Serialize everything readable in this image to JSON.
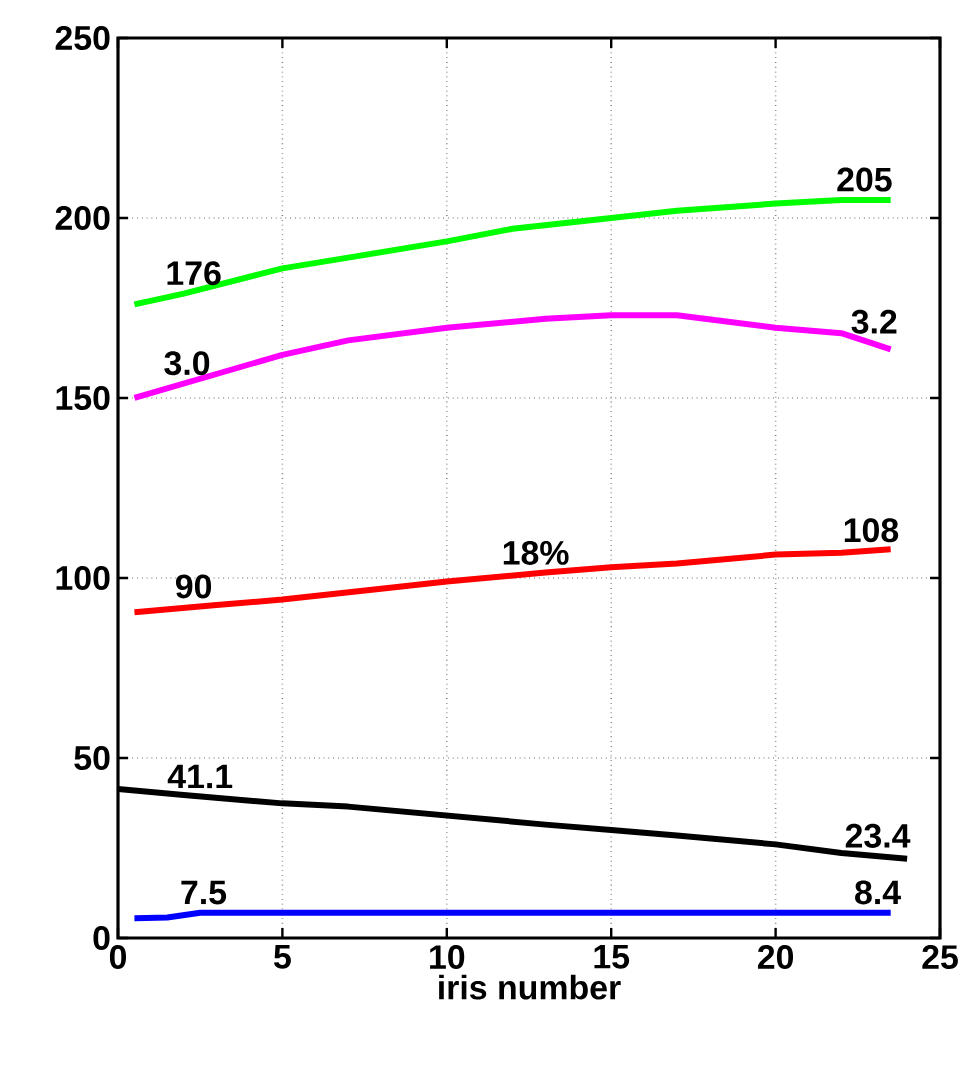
{
  "chart_data": {
    "type": "line",
    "xlabel": "iris number",
    "xlim": [
      0,
      25
    ],
    "ylim": [
      0,
      250
    ],
    "xticks": [
      0,
      5,
      10,
      15,
      20,
      25
    ],
    "yticks": [
      0,
      50,
      100,
      150,
      200,
      250
    ],
    "grid": true,
    "line_style": "solid",
    "marker": "none",
    "series": [
      {
        "color": "#00ff00",
        "x": [
          0.5,
          2,
          5,
          7,
          10,
          12,
          15,
          17,
          20,
          22,
          23.5
        ],
        "values": [
          176,
          179,
          186,
          189,
          193.5,
          197,
          200,
          202,
          204,
          205,
          205
        ]
      },
      {
        "color": "#ff00ff",
        "x": [
          0.5,
          2,
          5,
          7,
          10,
          13,
          15,
          17,
          20,
          22,
          23.5
        ],
        "values": [
          150,
          154,
          162,
          166,
          169.5,
          172,
          173,
          173,
          169.5,
          168,
          163.5
        ]
      },
      {
        "color": "#ff0000",
        "x": [
          0.5,
          3,
          5,
          8,
          10,
          13,
          15,
          17,
          20,
          22,
          23.5
        ],
        "values": [
          90.5,
          92.5,
          94,
          97,
          99,
          101.5,
          103,
          104,
          106.5,
          107,
          108
        ]
      },
      {
        "color": "#000000",
        "x": [
          0,
          2,
          5,
          7,
          10,
          13,
          15,
          17,
          20,
          22,
          24
        ],
        "values": [
          41.4,
          39.7,
          37.4,
          36.5,
          34,
          31.5,
          30,
          28.5,
          26,
          23.6,
          22
        ]
      },
      {
        "color": "#0000ff",
        "x": [
          0.5,
          1.5,
          2.5,
          10,
          20,
          23.5
        ],
        "values": [
          5.5,
          5.7,
          7,
          7,
          7,
          7
        ]
      }
    ],
    "annotations": [
      {
        "text": "205",
        "x": 22.7,
        "y": 205
      },
      {
        "text": "176",
        "x": 2.3,
        "y": 179
      },
      {
        "text": "3.2",
        "x": 23,
        "y": 165.5
      },
      {
        "text": "3.0",
        "x": 2.1,
        "y": 154
      },
      {
        "text": "108",
        "x": 22.9,
        "y": 107.6
      },
      {
        "text": "90",
        "x": 2.3,
        "y": 92
      },
      {
        "text": "18%",
        "x": 12.7,
        "y": 101.3
      },
      {
        "text": "41.1",
        "x": 2.5,
        "y": 39.3
      },
      {
        "text": "23.4",
        "x": 23.1,
        "y": 22.7
      },
      {
        "text": "7.5",
        "x": 2.6,
        "y": 7
      },
      {
        "text": "8.4",
        "x": 23.1,
        "y": 7
      }
    ]
  }
}
